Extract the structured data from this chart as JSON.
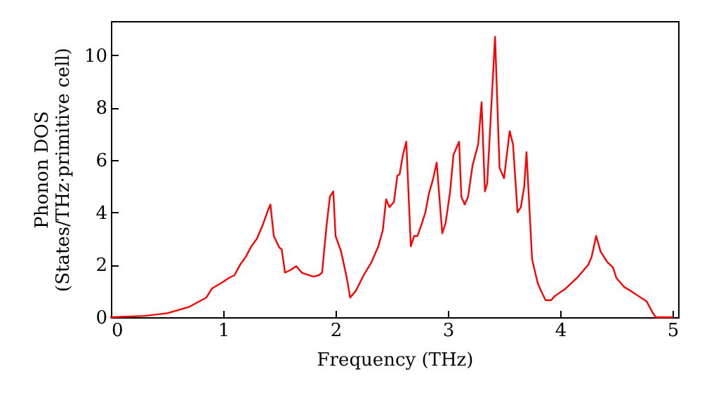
{
  "chart_data": {
    "type": "line",
    "xlabel": "Frequency (THz)",
    "ylabel": "Phonon DOS\n(States/THz·primitive cell)",
    "x": [
      0,
      0.3,
      0.5,
      0.7,
      0.85,
      0.9,
      1.0,
      1.05,
      1.1,
      1.15,
      1.2,
      1.25,
      1.3,
      1.35,
      1.4,
      1.42,
      1.45,
      1.5,
      1.52,
      1.55,
      1.6,
      1.65,
      1.7,
      1.8,
      1.85,
      1.88,
      1.92,
      1.95,
      1.98,
      2.0,
      2.05,
      2.1,
      2.13,
      2.18,
      2.25,
      2.32,
      2.38,
      2.42,
      2.45,
      2.48,
      2.52,
      2.55,
      2.57,
      2.6,
      2.63,
      2.67,
      2.7,
      2.73,
      2.77,
      2.8,
      2.83,
      2.87,
      2.9,
      2.95,
      2.98,
      3.02,
      3.05,
      3.1,
      3.12,
      3.15,
      3.18,
      3.22,
      3.27,
      3.3,
      3.33,
      3.35,
      3.42,
      3.46,
      3.5,
      3.55,
      3.58,
      3.62,
      3.65,
      3.68,
      3.7,
      3.75,
      3.8,
      3.83,
      3.87,
      3.92,
      3.95,
      4.05,
      4.15,
      4.25,
      4.28,
      4.32,
      4.36,
      4.42,
      4.47,
      4.5,
      4.57,
      4.63,
      4.7,
      4.77,
      4.82,
      4.85,
      5.0
    ],
    "series": [
      {
        "color": "#ff0000",
        "values": [
          0,
          0.05,
          0.15,
          0.4,
          0.75,
          1.1,
          1.35,
          1.5,
          1.6,
          2.0,
          2.3,
          2.7,
          3.0,
          3.5,
          4.1,
          4.3,
          3.1,
          2.65,
          2.6,
          1.7,
          1.8,
          1.95,
          1.7,
          1.55,
          1.6,
          1.7,
          3.5,
          4.6,
          4.8,
          3.1,
          2.5,
          1.5,
          0.75,
          1.0,
          1.6,
          2.1,
          2.7,
          3.3,
          4.5,
          4.2,
          4.4,
          5.4,
          5.45,
          6.2,
          6.7,
          2.7,
          3.1,
          3.1,
          3.6,
          4.0,
          4.7,
          5.3,
          5.9,
          3.2,
          3.6,
          4.8,
          6.2,
          6.7,
          4.6,
          4.3,
          4.6,
          5.8,
          6.6,
          8.2,
          4.8,
          5.1,
          10.7,
          5.7,
          5.3,
          7.1,
          6.6,
          4.0,
          4.2,
          5.0,
          6.3,
          2.2,
          1.3,
          1.0,
          0.65,
          0.65,
          0.8,
          1.1,
          1.5,
          2.0,
          2.3,
          3.1,
          2.5,
          2.1,
          1.9,
          1.5,
          1.15,
          1.0,
          0.8,
          0.6,
          0.2,
          0,
          0
        ]
      }
    ],
    "xlim": [
      0,
      5.05
    ],
    "ylim": [
      0,
      11.3
    ],
    "xticks": [
      0,
      1,
      2,
      3,
      4,
      5
    ],
    "yticks": [
      0,
      2,
      4,
      6,
      8,
      10
    ],
    "line_style": "solid",
    "marker": "none"
  }
}
